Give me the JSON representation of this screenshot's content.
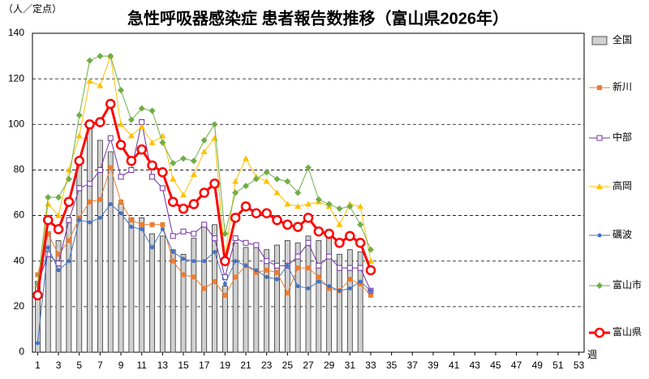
{
  "chart_data": {
    "type": "line",
    "title": "急性呼吸器感染症 患者報告数推移（富山県2026年）",
    "y_label": "（人／定点）",
    "x_label": "週",
    "x": [
      1,
      2,
      3,
      4,
      5,
      6,
      7,
      8,
      9,
      10,
      11,
      12,
      13,
      14,
      15,
      16,
      17,
      18,
      19,
      20,
      21,
      22,
      23,
      24,
      25,
      26,
      27,
      28,
      29,
      30,
      31,
      32,
      33
    ],
    "xlim": [
      0.5,
      53.5
    ],
    "xticks": [
      1,
      3,
      5,
      7,
      9,
      11,
      13,
      15,
      17,
      19,
      21,
      23,
      25,
      27,
      29,
      31,
      33,
      35,
      37,
      39,
      41,
      43,
      45,
      47,
      49,
      51,
      53
    ],
    "ylim": [
      0,
      140
    ],
    "yticks": [
      0,
      20,
      40,
      60,
      80,
      100,
      120,
      140
    ],
    "grid": true,
    "legend": "right",
    "series": [
      {
        "name": "全国",
        "type": "bar",
        "color": "#d0d0d0",
        "values": [
          29,
          53,
          49,
          59,
          82,
          101,
          93,
          88,
          65,
          59,
          59,
          52,
          51,
          45,
          43,
          50,
          56,
          56,
          29,
          48,
          46,
          46,
          45,
          47,
          49,
          48,
          51,
          49,
          52,
          43,
          45,
          44,
          null
        ]
      },
      {
        "name": "新川",
        "color": "#ed7d31",
        "marker": "square",
        "values": [
          34,
          52,
          43,
          49,
          59,
          66,
          67,
          81,
          66,
          58,
          56,
          56,
          56,
          40,
          34,
          33,
          28,
          31,
          25,
          33,
          38,
          35,
          36,
          35,
          26,
          37,
          37,
          33,
          28,
          27,
          32,
          30,
          25
        ]
      },
      {
        "name": "中部",
        "color": "#7030a0",
        "marker": "open-square",
        "values": [
          30,
          43,
          39,
          58,
          72,
          74,
          80,
          94,
          77,
          80,
          101,
          77,
          72,
          51,
          53,
          52,
          56,
          50,
          33,
          50,
          48,
          47,
          40,
          38,
          38,
          42,
          48,
          38,
          42,
          37,
          37,
          37,
          27
        ]
      },
      {
        "name": "高岡",
        "color": "#ffc000",
        "marker": "triangle",
        "values": [
          30,
          65,
          60,
          80,
          95,
          119,
          117,
          130,
          100,
          95,
          99,
          92,
          95,
          76,
          69,
          78,
          88,
          94,
          41,
          75,
          85,
          77,
          75,
          70,
          65,
          64,
          65,
          66,
          64,
          56,
          65,
          64,
          40
        ]
      },
      {
        "name": "礪波",
        "color": "#4472c4",
        "marker": "circle",
        "values": [
          4,
          46,
          36,
          40,
          58,
          57,
          59,
          65,
          61,
          55,
          54,
          46,
          54,
          44,
          41,
          40,
          40,
          44,
          30,
          40,
          38,
          36,
          33,
          32,
          38,
          29,
          28,
          31,
          29,
          27,
          28,
          31,
          27
        ]
      },
      {
        "name": "富山市",
        "color": "#70ad47",
        "marker": "diamond",
        "values": [
          30,
          68,
          68,
          76,
          104,
          128,
          130,
          130,
          115,
          102,
          107,
          106,
          92,
          83,
          85,
          84,
          93,
          100,
          52,
          70,
          73,
          76,
          79,
          76,
          75,
          70,
          81,
          67,
          65,
          63,
          64,
          56,
          45
        ]
      },
      {
        "name": "富山県",
        "color": "#ff0000",
        "marker": "open-circle",
        "line_width": 3,
        "values": [
          25,
          58,
          54,
          66,
          84,
          100,
          101,
          109,
          91,
          84,
          89,
          82,
          79,
          66,
          63,
          65,
          70,
          74,
          40,
          59,
          64,
          61,
          61,
          58,
          56,
          55,
          59,
          53,
          52,
          48,
          51,
          48,
          36
        ]
      }
    ]
  }
}
